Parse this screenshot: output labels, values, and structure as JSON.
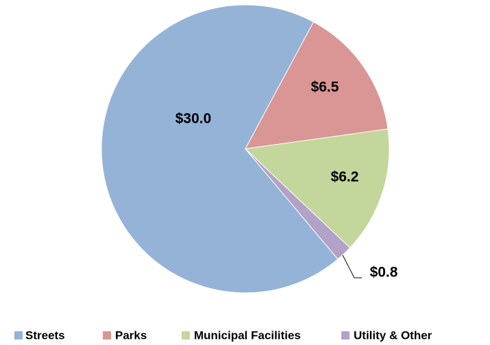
{
  "chart_data": {
    "type": "pie",
    "categories": [
      "Streets",
      "Parks",
      "Municipal Facilities",
      "Utility & Other"
    ],
    "values": [
      30.0,
      6.5,
      6.2,
      0.8
    ],
    "value_labels": [
      "$30.0",
      "$6.5",
      "$6.2",
      "$0.8"
    ],
    "colors": [
      "#95b3d7",
      "#d99694",
      "#c3d69b",
      "#b3a2c7"
    ],
    "legend": "bottom"
  }
}
